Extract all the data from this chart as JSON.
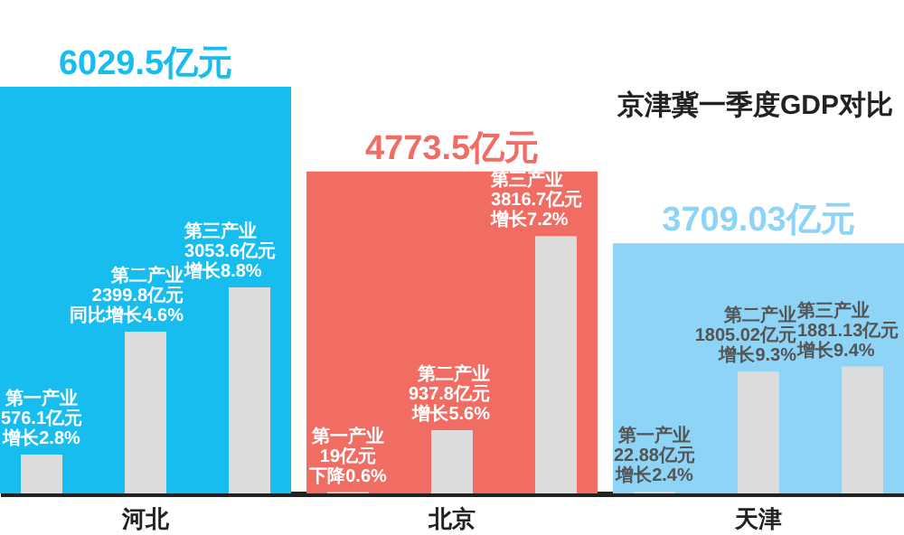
{
  "chart_data": {
    "type": "bar",
    "title": "京津冀一季度GDP对比",
    "categories": [
      "河北",
      "北京",
      "天津"
    ],
    "series": [
      {
        "colors": [
          "#17bdef",
          "#f16d63",
          "#8dd4f6"
        ],
        "values": [
          6029.5,
          4773.5,
          3709.03
        ],
        "value_labels": [
          "6029.5亿元",
          "4773.5亿元",
          "3709.03亿元"
        ]
      },
      {
        "name": "第一产业",
        "color": "#dcdcdc",
        "values": [
          576.1,
          19,
          22.88
        ],
        "value_labels": [
          "576.1亿元",
          "19亿元",
          "22.88亿元"
        ]
      },
      {
        "name": "第二产业",
        "color": "#dcdcdc",
        "values": [
          2399.8,
          937.8,
          1805.02
        ],
        "value_labels": [
          "2399.8亿元",
          "937.8亿元",
          "1805.02亿元"
        ]
      },
      {
        "name": "第三产业",
        "color": "#dcdcdc",
        "values": [
          3053.6,
          3816.7,
          1881.13
        ],
        "value_labels": [
          "3053.6亿元",
          "3816.7亿元",
          "1881.13亿元"
        ]
      }
    ],
    "annotations": [
      "增长2.8%",
      "下降0.6%",
      "增长2.4%",
      "同比增长4.6%",
      "增长5.6%",
      "增长9.3%",
      "增长8.8%",
      "增长7.2%",
      "增长9.4%"
    ]
  }
}
